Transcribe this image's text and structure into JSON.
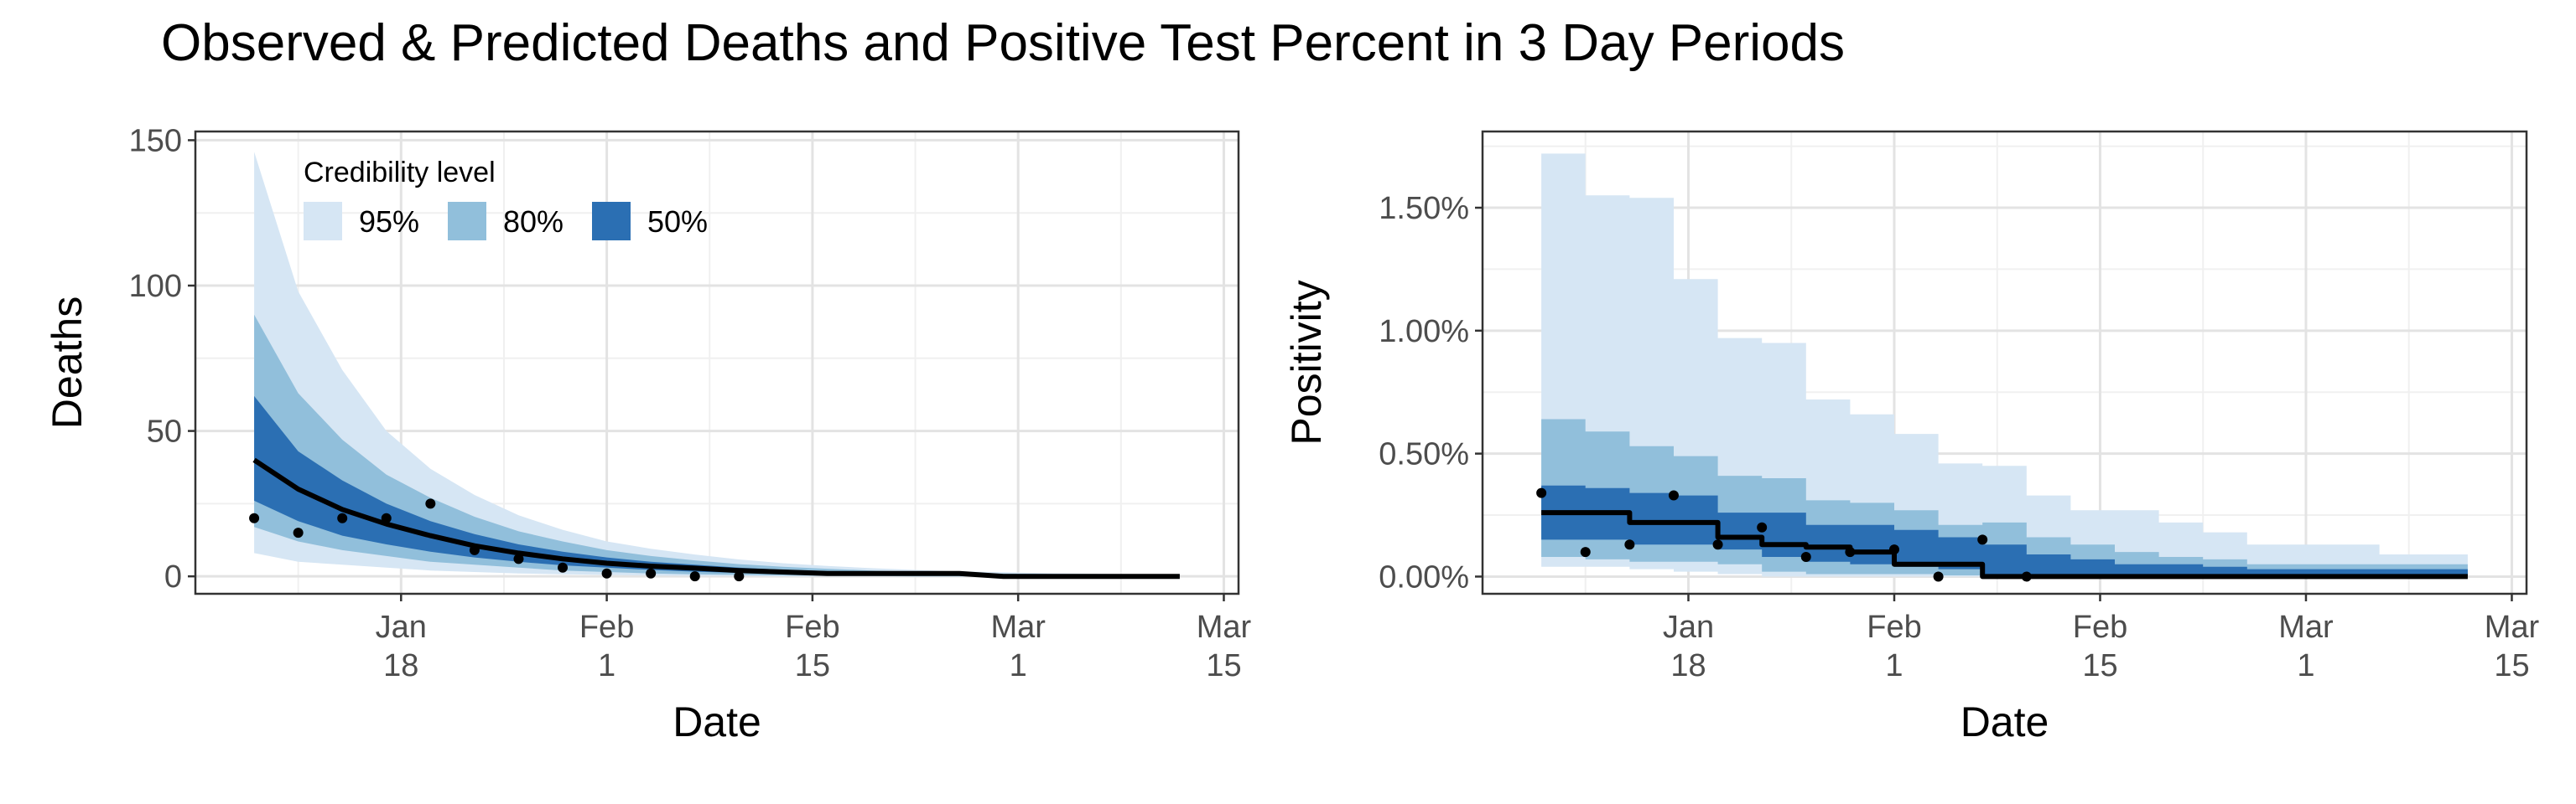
{
  "chart_data": [
    {
      "type": "area",
      "title": "Observed & Predicted Deaths and Positive Test Percent in 3 Day Periods",
      "xlabel": "Date",
      "ylabel": "Deaths",
      "xlim": [
        "2021-01-04",
        "2021-03-16"
      ],
      "ylim": [
        -6,
        153
      ],
      "xticks": [
        {
          "date": "2021-01-18",
          "label_line1": "Jan",
          "label_line2": "18"
        },
        {
          "date": "2021-02-01",
          "label_line1": "Feb",
          "label_line2": "1"
        },
        {
          "date": "2021-02-15",
          "label_line1": "Feb",
          "label_line2": "15"
        },
        {
          "date": "2021-03-01",
          "label_line1": "Mar",
          "label_line2": "1"
        },
        {
          "date": "2021-03-15",
          "label_line1": "Mar",
          "label_line2": "15"
        }
      ],
      "yticks": [
        {
          "value": 0,
          "label": "0"
        },
        {
          "value": 50,
          "label": "50"
        },
        {
          "value": 100,
          "label": "100"
        },
        {
          "value": 150,
          "label": "150"
        }
      ],
      "grid": true,
      "legend": {
        "title": "Credibility level",
        "placement": "top-left",
        "entries": [
          {
            "label": "95%",
            "color": "#d6e6f4"
          },
          {
            "label": "80%",
            "color": "#91bfdb"
          },
          {
            "label": "50%",
            "color": "#2b6fb3"
          }
        ]
      },
      "bands": {
        "x": [
          "2021-01-08",
          "2021-01-11",
          "2021-01-14",
          "2021-01-17",
          "2021-01-20",
          "2021-01-23",
          "2021-01-26",
          "2021-01-29",
          "2021-02-01",
          "2021-02-04",
          "2021-02-07",
          "2021-02-10",
          "2021-02-13",
          "2021-02-16",
          "2021-02-19",
          "2021-02-22",
          "2021-02-25",
          "2021-02-28",
          "2021-03-03",
          "2021-03-06",
          "2021-03-09",
          "2021-03-12"
        ],
        "lower_95": [
          8,
          5,
          4,
          3,
          2,
          1.5,
          1,
          0.7,
          0.5,
          0.3,
          0.2,
          0.1,
          0,
          0,
          0,
          0,
          0,
          0,
          0,
          0,
          0,
          0
        ],
        "lower_80": [
          17,
          12,
          9,
          7,
          5,
          4,
          3,
          2,
          1.5,
          1,
          0.7,
          0.5,
          0.3,
          0.2,
          0.1,
          0,
          0,
          0,
          0,
          0,
          0,
          0
        ],
        "lower_50": [
          26,
          19,
          14,
          11,
          8.5,
          6.5,
          5,
          3.8,
          3,
          2.2,
          1.6,
          1.2,
          0.9,
          0.6,
          0.4,
          0.3,
          0.2,
          0,
          0,
          0,
          0,
          0
        ],
        "upper_50": [
          62,
          43,
          33,
          25,
          19,
          14.5,
          11,
          8.5,
          6.5,
          5,
          4,
          3,
          2.3,
          1.8,
          1.4,
          1.1,
          0.8,
          0.6,
          0.5,
          0.4,
          0.3,
          0.2
        ],
        "upper_80": [
          90,
          63,
          47,
          35,
          27,
          20.5,
          15.5,
          12,
          9,
          7,
          5.5,
          4.2,
          3.3,
          2.6,
          2,
          1.6,
          1.2,
          1,
          0.8,
          0.6,
          0.5,
          0.4
        ],
        "upper_95": [
          146,
          98,
          71,
          50,
          37,
          28,
          21,
          16,
          12,
          9.5,
          7.5,
          5.8,
          4.5,
          3.6,
          2.8,
          2.2,
          1.7,
          1.4,
          1.1,
          0.9,
          0.7,
          0.5
        ]
      },
      "predicted": {
        "x": [
          "2021-01-08",
          "2021-01-11",
          "2021-01-14",
          "2021-01-17",
          "2021-01-20",
          "2021-01-23",
          "2021-01-26",
          "2021-01-29",
          "2021-02-01",
          "2021-02-04",
          "2021-02-07",
          "2021-02-10",
          "2021-02-13",
          "2021-02-16",
          "2021-02-19",
          "2021-02-22",
          "2021-02-25",
          "2021-02-28",
          "2021-03-03",
          "2021-03-06",
          "2021-03-09",
          "2021-03-12"
        ],
        "y": [
          40,
          30,
          23,
          18,
          14,
          10.5,
          8,
          6,
          4.5,
          3.5,
          2.8,
          2,
          1.5,
          1,
          1,
          1,
          1,
          0,
          0,
          0,
          0,
          0
        ]
      },
      "observed": {
        "x": [
          "2021-01-08",
          "2021-01-11",
          "2021-01-14",
          "2021-01-17",
          "2021-01-20",
          "2021-01-23",
          "2021-01-26",
          "2021-01-29",
          "2021-02-01",
          "2021-02-04",
          "2021-02-07",
          "2021-02-10"
        ],
        "y": [
          20,
          15,
          20,
          20,
          25,
          9,
          6,
          3,
          1,
          1,
          0,
          0
        ]
      }
    },
    {
      "type": "area",
      "title": "",
      "xlabel": "Date",
      "ylabel": "Positivity",
      "xlim": [
        "2021-01-04",
        "2021-03-16"
      ],
      "ylim": [
        -0.0007,
        0.0181
      ],
      "xticks": [
        {
          "date": "2021-01-18",
          "label_line1": "Jan",
          "label_line2": "18"
        },
        {
          "date": "2021-02-01",
          "label_line1": "Feb",
          "label_line2": "1"
        },
        {
          "date": "2021-02-15",
          "label_line1": "Feb",
          "label_line2": "15"
        },
        {
          "date": "2021-03-01",
          "label_line1": "Mar",
          "label_line2": "1"
        },
        {
          "date": "2021-03-15",
          "label_line1": "Mar",
          "label_line2": "15"
        }
      ],
      "yticks": [
        {
          "value": 0,
          "label": "0.00%"
        },
        {
          "value": 0.005,
          "label": "0.50%"
        },
        {
          "value": 0.01,
          "label": "1.00%"
        },
        {
          "value": 0.015,
          "label": "1.50%"
        }
      ],
      "grid": true,
      "step_x": [
        "2021-01-08",
        "2021-01-11",
        "2021-01-14",
        "2021-01-17",
        "2021-01-20",
        "2021-01-23",
        "2021-01-26",
        "2021-01-29",
        "2021-02-01",
        "2021-02-04",
        "2021-02-07",
        "2021-02-10",
        "2021-02-13",
        "2021-02-16",
        "2021-02-19",
        "2021-02-22",
        "2021-02-25",
        "2021-02-28",
        "2021-03-03",
        "2021-03-06",
        "2021-03-09",
        "2021-03-12"
      ],
      "bands": {
        "lower_95": [
          0.0004,
          0.0004,
          0.0003,
          0.0002,
          0.0001,
          0,
          0,
          0,
          0,
          0,
          0,
          0,
          0,
          0,
          0,
          0,
          0,
          0,
          0,
          0,
          0,
          0
        ],
        "lower_80": [
          0.0008,
          0.0007,
          0.0006,
          0.0006,
          0.0005,
          0.0002,
          0.0001,
          0.0001,
          0.0001,
          5e-05,
          0,
          0,
          0,
          0,
          0,
          0,
          0,
          0,
          0,
          0,
          0,
          0
        ],
        "lower_50": [
          0.0015,
          0.0015,
          0.0013,
          0.0013,
          0.0011,
          0.0008,
          0.0006,
          0.0005,
          0.0004,
          0.0003,
          0.0001,
          0,
          0,
          0,
          0,
          0,
          0,
          0,
          0,
          0,
          0,
          0
        ],
        "upper_50": [
          0.0037,
          0.0036,
          0.0034,
          0.0033,
          0.0026,
          0.0026,
          0.0021,
          0.0021,
          0.0019,
          0.0016,
          0.0013,
          0.0009,
          0.0007,
          0.0005,
          0.0005,
          0.0004,
          0.0003,
          0.0003,
          0.0003,
          0.0003,
          0.0003,
          0.0001
        ],
        "upper_80": [
          0.0064,
          0.0059,
          0.0053,
          0.0049,
          0.0041,
          0.004,
          0.0031,
          0.003,
          0.0027,
          0.0021,
          0.0022,
          0.0016,
          0.0013,
          0.001,
          0.0008,
          0.0007,
          0.0005,
          0.0005,
          0.0005,
          0.0005,
          0.0005,
          0.0002
        ],
        "upper_95": [
          0.0172,
          0.0155,
          0.0154,
          0.0121,
          0.0097,
          0.0095,
          0.0072,
          0.0066,
          0.0058,
          0.0046,
          0.0045,
          0.0033,
          0.0027,
          0.0027,
          0.0022,
          0.0018,
          0.0013,
          0.0013,
          0.0013,
          0.0009,
          0.0009,
          0.0009
        ]
      },
      "predicted": {
        "y": [
          0.0026,
          0.0026,
          0.0022,
          0.0022,
          0.0016,
          0.0013,
          0.0012,
          0.001,
          0.0005,
          0.0005,
          0,
          0,
          0,
          0,
          0,
          0,
          0,
          0,
          0,
          0,
          0,
          0
        ]
      },
      "observed": {
        "x": [
          "2021-01-08",
          "2021-01-11",
          "2021-01-14",
          "2021-01-17",
          "2021-01-20",
          "2021-01-23",
          "2021-01-26",
          "2021-01-29",
          "2021-02-01",
          "2021-02-04",
          "2021-02-07",
          "2021-02-10"
        ],
        "y": [
          0.0034,
          0.001,
          0.0013,
          0.0033,
          0.0013,
          0.002,
          0.0008,
          0.001,
          0.0011,
          0,
          0.0015,
          0
        ]
      }
    }
  ]
}
